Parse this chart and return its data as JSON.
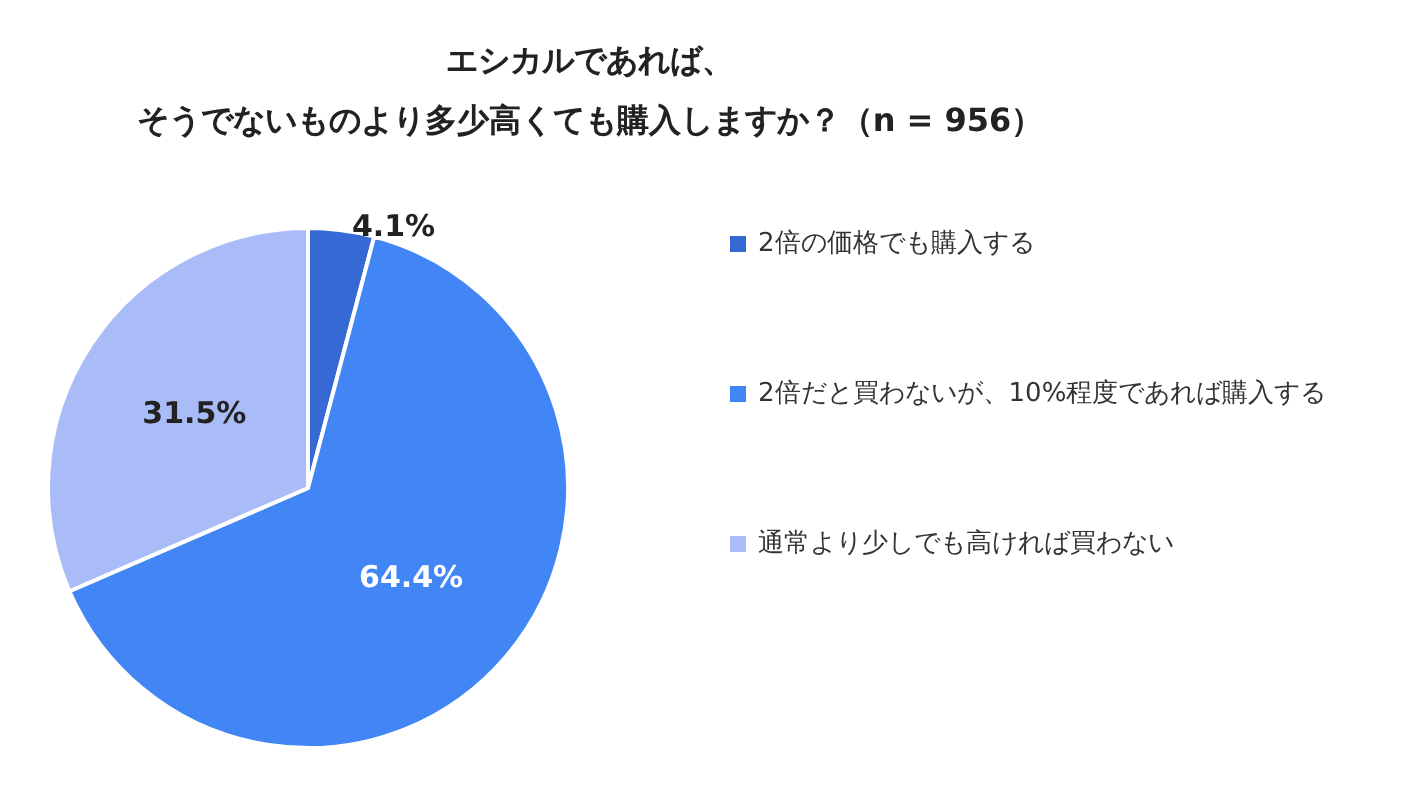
{
  "chart_data": {
    "type": "pie",
    "title": "エシカルであれば、そうでないものより多少高くても購入しますか？（n = 956）",
    "categories": [
      "2倍の価格でも購入する",
      "2倍だと買わないが、10%程度であれば購入する",
      "通常より少しでも高ければ買わない"
    ],
    "values": [
      4.1,
      64.4,
      31.5
    ],
    "colors": [
      "#3669d4",
      "#4285f4",
      "#a9bcf7"
    ],
    "value_labels": [
      "4.1%",
      "64.4%",
      "31.5%"
    ],
    "legend": "right"
  }
}
